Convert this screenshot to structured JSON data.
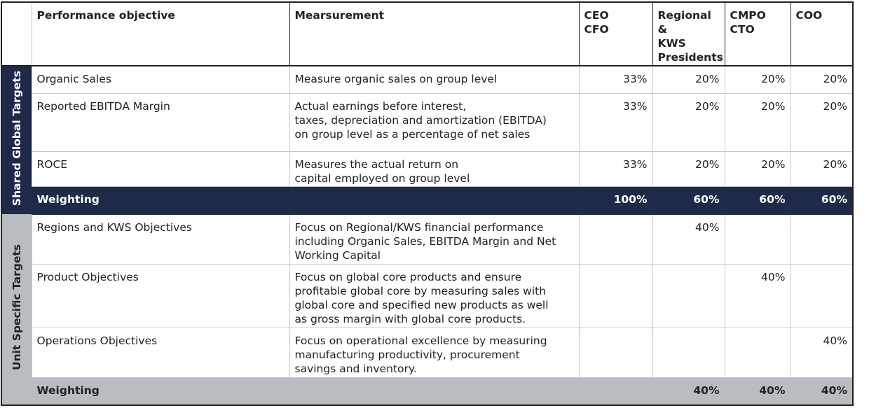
{
  "table": {
    "columns": [
      {
        "key": "objective",
        "label": "Performance objective"
      },
      {
        "key": "measurement",
        "label": "Mearsurement"
      },
      {
        "key": "ceo_cfo",
        "label": "CEO\nCFO"
      },
      {
        "key": "regional_kws",
        "label": "Regional &\nKWS\nPresidents"
      },
      {
        "key": "cmpo_cto",
        "label": "CMPO\nCTO"
      },
      {
        "key": "coo",
        "label": "COO"
      }
    ],
    "groups": [
      {
        "label": "Shared Global Targets",
        "rows": [
          {
            "objective": "Organic Sales",
            "measurement": "Measure organic sales on group level",
            "values": {
              "ceo_cfo": "33%",
              "regional_kws": "20%",
              "cmpo_cto": "20%",
              "coo": "20%"
            }
          },
          {
            "objective": "Reported EBITDA Margin",
            "measurement": "Actual earnings before interest,\ntaxes, depreciation and amortization (EBITDA)\non group level as a percentage of net sales",
            "values": {
              "ceo_cfo": "33%",
              "regional_kws": "20%",
              "cmpo_cto": "20%",
              "coo": "20%"
            }
          },
          {
            "objective": "ROCE",
            "measurement": "Measures the actual return on\ncapital employed on group level",
            "values": {
              "ceo_cfo": "33%",
              "regional_kws": "20%",
              "cmpo_cto": "20%",
              "coo": "20%"
            }
          }
        ],
        "weighting": {
          "label": "Weighting",
          "values": {
            "ceo_cfo": "100%",
            "regional_kws": "60%",
            "cmpo_cto": "60%",
            "coo": "60%"
          }
        }
      },
      {
        "label": "Unit Specific Targets",
        "rows": [
          {
            "objective": "Regions and KWS Objectives",
            "measurement": "Focus on Regional/KWS financial performance\nincluding Organic Sales, EBITDA Margin and Net\nWorking Capital",
            "values": {
              "regional_kws": "40%"
            }
          },
          {
            "objective": "Product Objectives",
            "measurement": "Focus on global core products and ensure\nprofitable global core by measuring sales with\nglobal core and specified new products as well\nas gross margin with global core products.",
            "values": {
              "cmpo_cto": "40%"
            }
          },
          {
            "objective": "Operations Objectives",
            "measurement": "Focus on operational excellence by measuring\nmanufacturing productivity, procurement\nsavings and inventory.",
            "values": {
              "coo": "40%"
            }
          }
        ],
        "weighting": {
          "label": "Weighting",
          "values": {
            "regional_kws": "40%",
            "cmpo_cto": "40%",
            "coo": "40%"
          }
        }
      }
    ]
  }
}
